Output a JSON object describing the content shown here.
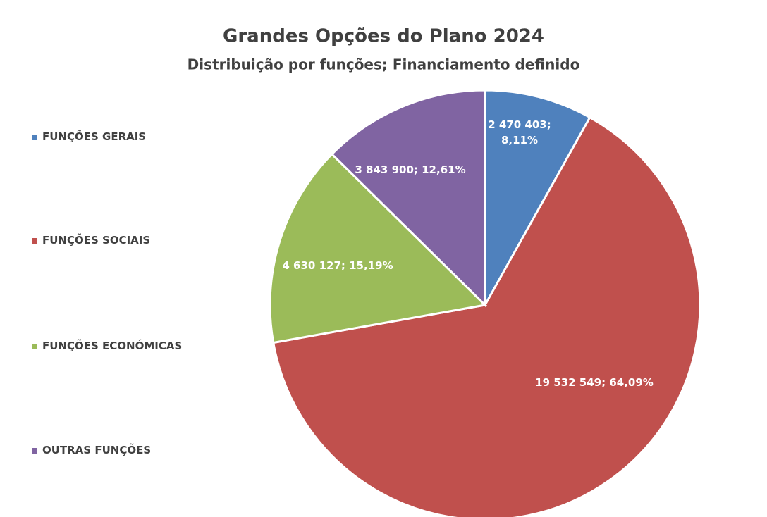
{
  "chart_data": {
    "type": "pie",
    "title": "Grandes Opções do Plano 2024",
    "subtitle": "Distribuição por funções; Financiamento definido",
    "categories": [
      "FUNÇÕES GERAIS",
      "FUNÇÕES SOCIAIS",
      "FUNÇÕES ECONÓMICAS",
      "OUTRAS FUNÇÕES"
    ],
    "values": [
      2470403,
      19532549,
      4630127,
      3843900
    ],
    "value_labels": [
      "2 470 403; 8,11%",
      "19 532 549; 64,09%",
      "4 630 127; 15,19%",
      "3 843 900; 12,61%"
    ],
    "colors": [
      "#4f81bd",
      "#c0504d",
      "#9bbb59",
      "#8064a2"
    ],
    "legend": "left"
  }
}
